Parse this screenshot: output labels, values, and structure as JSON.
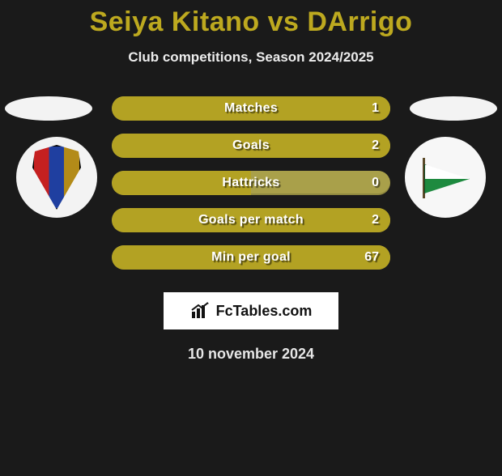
{
  "title": "Seiya Kitano vs DArrigo",
  "subtitle": "Club competitions, Season 2024/2025",
  "brand": "FcTables.com",
  "date": "10 november 2024",
  "colors": {
    "bar_fill": "#b3a223",
    "bar_bg": "#a9a04a",
    "title": "#bda91f",
    "bg": "#1a1a1a"
  },
  "stats": [
    {
      "label": "Matches",
      "value": "1",
      "fill_pct": 100
    },
    {
      "label": "Goals",
      "value": "2",
      "fill_pct": 100
    },
    {
      "label": "Hattricks",
      "value": "0",
      "fill_pct": 50
    },
    {
      "label": "Goals per match",
      "value": "2",
      "fill_pct": 100
    },
    {
      "label": "Min per goal",
      "value": "67",
      "fill_pct": 100
    }
  ]
}
